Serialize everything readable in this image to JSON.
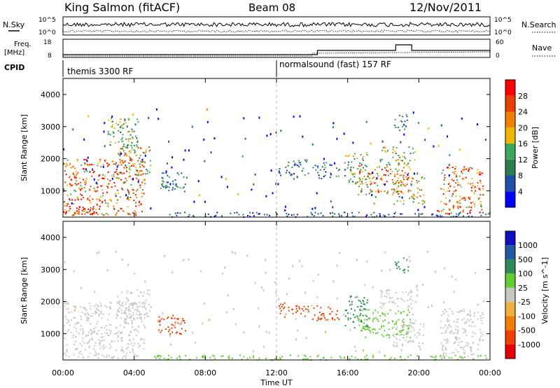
{
  "header": {
    "station": "King Salmon (fitACF)",
    "beam": "Beam 08",
    "date": "12/Nov/2011"
  },
  "noise_panel": {
    "left_label": "N.Sky",
    "right_label": "N.Search",
    "ticks_left": [
      "10^5",
      "10^0"
    ],
    "ticks_right": [
      "10^5",
      "10^0"
    ]
  },
  "freq_panel": {
    "left_label_1": "Freq.",
    "left_label_2": "[MHz]",
    "right_label": "Nave",
    "ticks_left": [
      "18",
      "8"
    ],
    "ticks_right": [
      "60",
      "0"
    ]
  },
  "cpid": {
    "label": "CPID",
    "segments": [
      {
        "name": "themis 3300 RF",
        "start_hour": 0
      },
      {
        "name": "normalsound (fast) 157 RF",
        "start_hour": 12
      }
    ]
  },
  "colors": {
    "power": [
      "#0000ff",
      "#1f4fa8",
      "#2e7d4f",
      "#3aa85a",
      "#f0b800",
      "#f08000",
      "#e84000",
      "#ff0000"
    ],
    "velocity": [
      "#e60000",
      "#f04000",
      "#f08000",
      "#f0b040",
      "#c8c8c0",
      "#66cc33",
      "#2e8b57",
      "#1f5aa0",
      "#1010c0"
    ]
  },
  "chart_data": [
    {
      "type": "heatmap",
      "name": "power",
      "ylabel": "Slant Range [km]",
      "yticks": [
        "1000",
        "2000",
        "3000",
        "4000"
      ],
      "ylim": [
        180,
        4500
      ],
      "xlim": [
        0,
        24
      ],
      "colorbar_label": "Power [dB]",
      "colorbar_ticks": [
        "4",
        "8",
        "12",
        "16",
        "20",
        "24",
        "28"
      ],
      "colorbar_range": [
        0,
        32
      ],
      "regions": [
        {
          "t0": 0.0,
          "t1": 4.6,
          "r0": 250,
          "r1": 2000,
          "value": 24
        },
        {
          "t0": 0.0,
          "t1": 2.0,
          "r0": 250,
          "r1": 400,
          "value": 30
        },
        {
          "t0": 3.0,
          "t1": 4.9,
          "r0": 1500,
          "r1": 2400,
          "value": 18
        },
        {
          "t0": 2.5,
          "t1": 4.2,
          "r0": 2400,
          "r1": 3300,
          "value": 14
        },
        {
          "t0": 5.3,
          "t1": 6.9,
          "r0": 1000,
          "r1": 1600,
          "value": 10
        },
        {
          "t0": 5.0,
          "t1": 24.0,
          "r0": 200,
          "r1": 350,
          "value": 6
        },
        {
          "t0": 12.1,
          "t1": 13.8,
          "r0": 1500,
          "r1": 2000,
          "value": 8
        },
        {
          "t0": 14.0,
          "t1": 15.5,
          "r0": 1400,
          "r1": 1900,
          "value": 9
        },
        {
          "t0": 15.8,
          "t1": 17.2,
          "r0": 1200,
          "r1": 2200,
          "value": 14
        },
        {
          "t0": 16.5,
          "t1": 19.5,
          "r0": 900,
          "r1": 1800,
          "value": 22
        },
        {
          "t0": 18.5,
          "t1": 20.3,
          "r0": 600,
          "r1": 1500,
          "value": 18
        },
        {
          "t0": 17.8,
          "t1": 19.8,
          "r0": 1800,
          "r1": 2400,
          "value": 16
        },
        {
          "t0": 18.6,
          "t1": 19.4,
          "r0": 2900,
          "r1": 3400,
          "value": 10
        },
        {
          "t0": 21.2,
          "t1": 23.6,
          "r0": 300,
          "r1": 1800,
          "value": 24
        },
        {
          "t0": 20.8,
          "t1": 22.0,
          "r0": 300,
          "r1": 400,
          "value": 30
        }
      ]
    },
    {
      "type": "heatmap",
      "name": "velocity",
      "ylabel": "Slant Range [km]",
      "yticks": [
        "1000",
        "2000",
        "3000",
        "4000"
      ],
      "ylim": [
        180,
        4500
      ],
      "xlim": [
        0,
        24
      ],
      "colorbar_label": "Velocity [m s^-1]",
      "colorbar_ticks": [
        "1000",
        "500",
        "100",
        "25",
        "-25",
        "-100",
        "-500",
        "-1000"
      ],
      "regions": [
        {
          "t0": 0.0,
          "t1": 4.6,
          "r0": 250,
          "r1": 2000,
          "value": 0
        },
        {
          "t0": 3.0,
          "t1": 4.9,
          "r0": 1500,
          "r1": 2400,
          "value": 0
        },
        {
          "t0": 5.3,
          "t1": 6.9,
          "r0": 1000,
          "r1": 1600,
          "value": -150
        },
        {
          "t0": 5.0,
          "t1": 24.0,
          "r0": 200,
          "r1": 350,
          "value": 60
        },
        {
          "t0": 12.1,
          "t1": 13.8,
          "r0": 1500,
          "r1": 2000,
          "value": -300
        },
        {
          "t0": 14.0,
          "t1": 15.5,
          "r0": 1400,
          "r1": 1900,
          "value": -200
        },
        {
          "t0": 15.8,
          "t1": 17.2,
          "r0": 1200,
          "r1": 2200,
          "value": 200
        },
        {
          "t0": 16.5,
          "t1": 19.5,
          "r0": 900,
          "r1": 1800,
          "value": 60
        },
        {
          "t0": 18.5,
          "t1": 20.3,
          "r0": 600,
          "r1": 1500,
          "value": 0
        },
        {
          "t0": 17.8,
          "t1": 19.8,
          "r0": 1800,
          "r1": 2400,
          "value": 0
        },
        {
          "t0": 18.6,
          "t1": 19.4,
          "r0": 2900,
          "r1": 3400,
          "value": 200
        },
        {
          "t0": 21.2,
          "t1": 23.6,
          "r0": 300,
          "r1": 1800,
          "value": 0
        }
      ]
    }
  ],
  "x_axis": {
    "label": "Time UT",
    "ticks": [
      "00:00",
      "04:00",
      "08:00",
      "12:00",
      "16:00",
      "20:00",
      "00:00"
    ],
    "tick_hours": [
      0,
      4,
      8,
      12,
      16,
      20,
      24
    ]
  }
}
